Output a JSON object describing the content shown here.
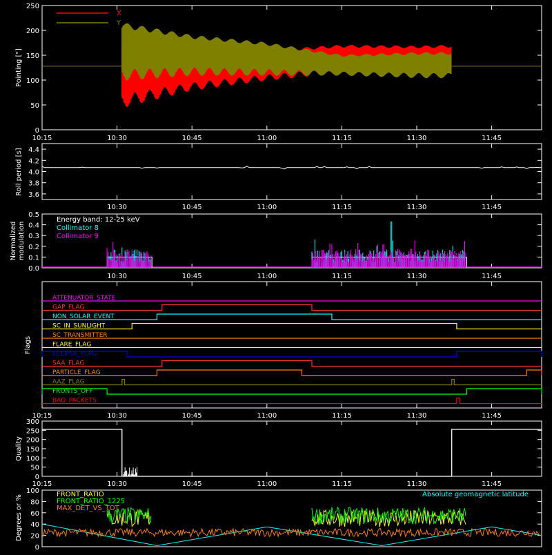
{
  "colors": {
    "background": "#000000",
    "axis": "#ffffff",
    "x": "#ff0000",
    "y": "#808000",
    "collimator8": "#00ffff",
    "collimator9": "#ff00ff",
    "front_ratio": "#ffff00",
    "front_ratio_1225": "#00ff00",
    "max_det": "#ff8000",
    "latitude": "#00ffff"
  },
  "chart_data": [
    {
      "type": "line",
      "id": "pointing",
      "ylabel": "Pointing [\"]",
      "ylim": [
        0,
        250
      ],
      "yticks": [
        "0",
        "50",
        "100",
        "150",
        "200",
        "250"
      ],
      "xlim": [
        "10:15",
        "11:55"
      ],
      "xticks": [
        "10:15",
        "10:30",
        "10:45",
        "11:00",
        "11:15",
        "11:30",
        "11:45"
      ],
      "legend": {
        "placement": "top-left"
      },
      "reference_level": 128,
      "series": [
        {
          "name": "X",
          "start": "10:31",
          "end": "11:37",
          "envelope": [
            [
              "10:31",
              45,
              180
            ],
            [
              "10:45",
              80,
              160
            ],
            [
              "11:00",
              100,
              160
            ],
            [
              "11:15",
              115,
              170
            ],
            [
              "11:30",
              120,
              168
            ],
            [
              "11:37",
              115,
              170
            ]
          ]
        },
        {
          "name": "Y",
          "start": "10:31",
          "end": "11:37",
          "envelope": [
            [
              "10:31",
              100,
              215
            ],
            [
              "10:45",
              110,
              190
            ],
            [
              "11:00",
              110,
              175
            ],
            [
              "11:15",
              110,
              150
            ],
            [
              "11:30",
              105,
              155
            ],
            [
              "11:37",
              105,
              155
            ]
          ]
        }
      ]
    },
    {
      "type": "line",
      "id": "roll",
      "ylabel": "Roll period [s]",
      "ylim": [
        3.5,
        4.5
      ],
      "yticks": [
        "3.6",
        "3.8",
        "4.0",
        "4.2",
        "4.4"
      ],
      "xticks": [
        "10:30",
        "10:45",
        "11:00",
        "11:15",
        "11:30",
        "11:45"
      ],
      "level": 4.07
    },
    {
      "type": "line",
      "id": "modulation",
      "ylabel": [
        "Normalized",
        "modulation"
      ],
      "ylim": [
        0,
        0.5
      ],
      "yticks": [
        "0.0",
        "0.1",
        "0.2",
        "0.3",
        "0.4",
        "0.5"
      ],
      "xticks": [
        "10:30",
        "10:45",
        "11:00",
        "11:15",
        "11:30",
        "11:45"
      ],
      "legend_title": "Energy band: 12-25 keV",
      "series": [
        {
          "name": "Collimator 8",
          "segments": [
            [
              "10:28",
              "10:37"
            ],
            [
              "11:09",
              "11:40"
            ]
          ],
          "base": 0.1,
          "peak": [
            "11:25",
            0.43
          ]
        },
        {
          "name": "Collimator 9",
          "segments": [
            [
              "10:28",
              "10:37"
            ],
            [
              "11:09",
              "11:40"
            ]
          ],
          "base": 0.1
        }
      ],
      "reference": {
        "segments": [
          [
            "10:28",
            "10:37"
          ],
          [
            "11:09",
            "11:40"
          ]
        ],
        "level": 0.1
      }
    },
    {
      "type": "table",
      "id": "flags",
      "ylabel": "Flags",
      "xticks": [
        "10:15",
        "10:30",
        "10:45",
        "11:00",
        "11:15",
        "11:30",
        "11:45"
      ],
      "rows": [
        {
          "label": "ATTENUATOR_STATE",
          "color": "#ff00ff",
          "on": []
        },
        {
          "label": "GAP_FLAG",
          "color": "#ff3030",
          "on": [
            [
              "10:39",
              "11:09"
            ]
          ]
        },
        {
          "label": "NON_SOLAR_EVENT",
          "color": "#00ffff",
          "on": [
            [
              "10:38",
              "11:13"
            ]
          ]
        },
        {
          "label": "SC_IN_SUNLIGHT",
          "color": "#ffff00",
          "on": [
            [
              "10:33",
              "11:38"
            ]
          ]
        },
        {
          "label": "SC_TRANSMITTER",
          "color": "#ff8000",
          "on": []
        },
        {
          "label": "FLARE_FLAG",
          "color": "#ffff00",
          "on": []
        },
        {
          "label": "ECLIPSE_FLAG",
          "color": "#0000ff",
          "on": [
            [
              "10:15",
              "10:32"
            ],
            [
              "11:38",
              "11:55"
            ]
          ]
        },
        {
          "label": "SAA_FLAG",
          "color": "#ff3030",
          "on": [
            [
              "10:39",
              "11:09"
            ]
          ]
        },
        {
          "label": "PARTICLE_FLAG",
          "color": "#ff8000",
          "on": [
            [
              "10:38",
              "11:07"
            ],
            [
              "11:52",
              "11:55"
            ]
          ]
        },
        {
          "label": "AAZ_FLAG",
          "color": "#808000",
          "on": [
            [
              "10:31",
              "10:31.5"
            ],
            [
              "11:37",
              "11:37.5"
            ]
          ]
        },
        {
          "label": "FRONTS_OFF",
          "color": "#00ff00",
          "on": [
            [
              "10:15",
              "10:28"
            ],
            [
              "11:40",
              "11:55"
            ]
          ]
        },
        {
          "label": "BAD_PACKETS",
          "color": "#ff0000",
          "on": [
            [
              "11:38",
              "11:38.6"
            ]
          ]
        }
      ]
    },
    {
      "type": "line",
      "id": "quality",
      "ylabel": "Quality",
      "ylim": [
        0,
        300
      ],
      "yticks": [
        "0",
        "50",
        "100",
        "150",
        "200",
        "250",
        "300"
      ],
      "xticks": [
        "10:15",
        "10:30",
        "10:45",
        "11:00",
        "11:15",
        "11:30",
        "11:45"
      ],
      "values": [
        [
          "10:15",
          255
        ],
        [
          "10:31",
          255
        ],
        [
          "10:31",
          0
        ],
        [
          "11:37",
          0
        ],
        [
          "11:37",
          255
        ],
        [
          "11:55",
          255
        ]
      ]
    },
    {
      "type": "line",
      "id": "ratios",
      "ylabel": "Degrees or %",
      "ylim": [
        0,
        100
      ],
      "yticks": [
        "0",
        "20",
        "40",
        "60",
        "80",
        "100"
      ],
      "annotation": "Absolute geomagnetic latitude",
      "series": [
        {
          "name": "FRONT_RATIO",
          "segments": [
            [
              "10:28",
              "10:37"
            ],
            [
              "11:09",
              "11:40"
            ]
          ],
          "level": 50
        },
        {
          "name": "FRONT_RATIO_1225",
          "segments": [
            [
              "10:28",
              "10:37"
            ],
            [
              "11:09",
              "11:40"
            ]
          ],
          "level": 55
        },
        {
          "name": "MAX_DET_VS_TOT",
          "level": 25
        },
        {
          "name": "Absolute geomagnetic latitude",
          "points": [
            [
              "10:15",
              40
            ],
            [
              "10:38",
              2
            ],
            [
              "11:00",
              35
            ],
            [
              "11:23",
              2
            ],
            [
              "11:45",
              35
            ],
            [
              "11:55",
              20
            ]
          ]
        }
      ]
    }
  ]
}
